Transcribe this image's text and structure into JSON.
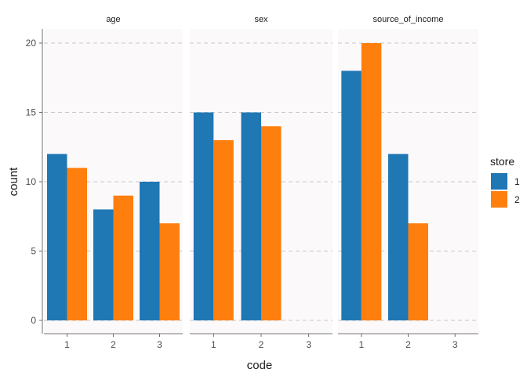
{
  "chart_data": {
    "type": "bar",
    "layout": "faceted",
    "xlabel": "code",
    "ylabel": "count",
    "ylim": [
      0,
      21
    ],
    "yticks": [
      0,
      5,
      10,
      15,
      20
    ],
    "grid": "horizontal dashed",
    "legend": {
      "title": "store",
      "placement": "right",
      "entries": [
        {
          "label": "1",
          "color": "#1f77b4"
        },
        {
          "label": "2",
          "color": "#ff7f0e"
        }
      ]
    },
    "facets": [
      {
        "label": "age",
        "categories": [
          "1",
          "2",
          "3"
        ],
        "series": [
          {
            "name": "1",
            "values": [
              12,
              8,
              10
            ]
          },
          {
            "name": "2",
            "values": [
              11,
              9,
              7
            ]
          }
        ]
      },
      {
        "label": "sex",
        "categories": [
          "1",
          "2",
          "3"
        ],
        "series": [
          {
            "name": "1",
            "values": [
              15,
              15,
              null
            ]
          },
          {
            "name": "2",
            "values": [
              13,
              14,
              null
            ]
          }
        ]
      },
      {
        "label": "source_of_income",
        "categories": [
          "1",
          "2",
          "3"
        ],
        "series": [
          {
            "name": "1",
            "values": [
              18,
              12,
              null
            ]
          },
          {
            "name": "2",
            "values": [
              20,
              7,
              null
            ]
          }
        ]
      }
    ]
  }
}
